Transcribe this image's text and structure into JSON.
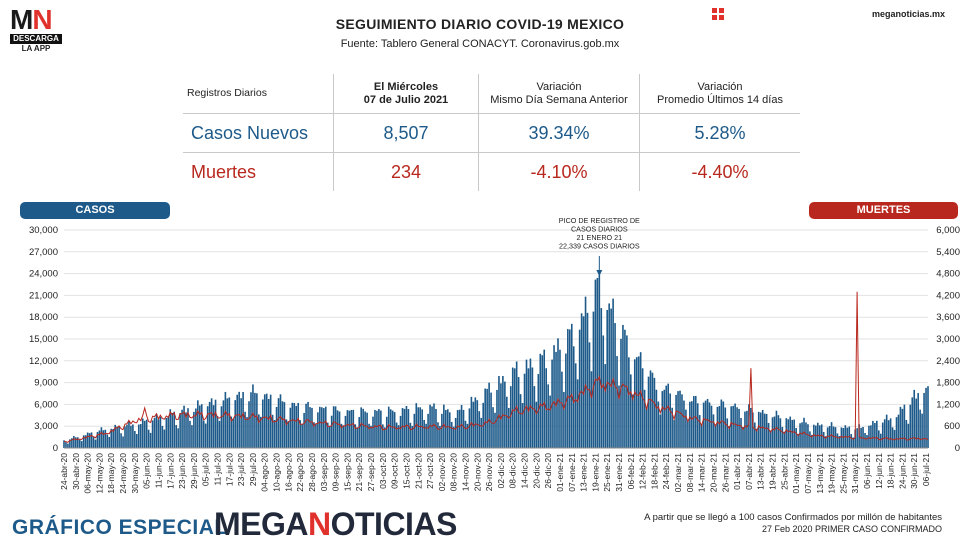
{
  "logo": {
    "mark_m": "M",
    "mark_n": "N",
    "bar": "DESCARGA",
    "sub": "LA APP"
  },
  "header": {
    "title": "SEGUIMIENTO DIARIO COVID-19 MEXICO",
    "subtitle": "Fuente: Tablero General CONACYT. Coronavirus.gob.mx",
    "site": "meganoticias.mx"
  },
  "table": {
    "col0": "Registros Diarios",
    "col1_l1": "El Miércoles",
    "col1_l2": "07 de Julio 2021",
    "col2_l1": "Variación",
    "col2_l2": "Mismo Día Semana Anterior",
    "col3_l1": "Variación",
    "col3_l2": "Promedio Últimos 14 días",
    "rows": [
      {
        "label": "Casos Nuevos",
        "v1": "8,507",
        "v2": "39.34%",
        "v3": "5.28%"
      },
      {
        "label": "Muertes",
        "v1": "234",
        "v2": "-4.10%",
        "v3": "-4.40%"
      }
    ]
  },
  "pills": {
    "left": "CASOS",
    "right": "MUERTES"
  },
  "footer": {
    "left": "GRÁFICO ESPECIAL",
    "brand_a": "MEGA",
    "brand_b": "N",
    "brand_c": "OTICIAS",
    "note1": "A partir que se llegó a 100 casos Confirmados por millón de habitantes",
    "note2": "27 Feb 2020 PRIMER CASO CONFIRMADO"
  },
  "colors": {
    "casos": "#1d5a8a",
    "muertes": "#b8281e",
    "accent": "#e0312c"
  },
  "chart_data": {
    "type": "bar",
    "left_axis": {
      "label": "CASOS",
      "ylim": [
        0,
        30000
      ],
      "ticks": [
        "0",
        "3,000",
        "6,000",
        "9,000",
        "12,000",
        "15,000",
        "18,000",
        "21,000",
        "24,000",
        "27,000",
        "30,000"
      ]
    },
    "right_axis": {
      "label": "MUERTES",
      "ylim": [
        0,
        6000
      ],
      "ticks": [
        "0",
        "600",
        "1,200",
        "1,800",
        "2,400",
        "3,000",
        "3,600",
        "4,200",
        "4,800",
        "5,400",
        "6,000"
      ]
    },
    "x_start": "2020-04-24",
    "x_end": "2021-07-07",
    "x_tick_labels": [
      "24-abr-20",
      "30-abr-20",
      "06-may-20",
      "12-may-20",
      "18-may-20",
      "24-may-20",
      "30-may-20",
      "05-jun-20",
      "11-jun-20",
      "17-jun-20",
      "23-jun-20",
      "29-jun-20",
      "05-jul-20",
      "11-jul-20",
      "17-jul-20",
      "23-jul-20",
      "29-jul-20",
      "04-ago-20",
      "10-ago-20",
      "16-ago-20",
      "22-ago-20",
      "28-ago-20",
      "03-sep-20",
      "09-sep-20",
      "15-sep-20",
      "21-sep-20",
      "27-sep-20",
      "03-oct-20",
      "09-oct-20",
      "15-oct-20",
      "21-oct-20",
      "27-oct-20",
      "02-nov-20",
      "08-nov-20",
      "14-nov-20",
      "20-nov-20",
      "26-nov-20",
      "02-dic-20",
      "08-dic-20",
      "14-dic-20",
      "20-dic-20",
      "26-dic-20",
      "01-ene-21",
      "07-ene-21",
      "13-ene-21",
      "19-ene-21",
      "25-ene-21",
      "31-ene-21",
      "06-feb-21",
      "12-feb-21",
      "18-feb-21",
      "24-feb-21",
      "02-mar-21",
      "08-mar-21",
      "14-mar-21",
      "20-mar-21",
      "26-mar-21",
      "01-abr-21",
      "07-abr-21",
      "13-abr-21",
      "19-abr-21",
      "25-abr-21",
      "01-may-21",
      "07-may-21",
      "13-may-21",
      "19-may-21",
      "25-may-21",
      "31-may-21",
      "06-jun-21",
      "12-jun-21",
      "18-jun-21",
      "24-jun-21",
      "30-jun-21",
      "06-jul-21"
    ],
    "casos_series": {
      "name": "CASOS",
      "keypoints_date": [
        "2020-04-24",
        "2020-05-15",
        "2020-06-01",
        "2020-06-20",
        "2020-07-10",
        "2020-07-29",
        "2020-08-20",
        "2020-09-15",
        "2020-10-05",
        "2020-10-27",
        "2020-11-10",
        "2020-11-25",
        "2020-12-10",
        "2020-12-25",
        "2021-01-08",
        "2021-01-21",
        "2021-02-05",
        "2021-02-20",
        "2021-03-10",
        "2021-04-01",
        "2021-04-20",
        "2021-05-10",
        "2021-06-01",
        "2021-06-20",
        "2021-07-07"
      ],
      "keypoints_value": [
        1000,
        2500,
        3300,
        4700,
        6100,
        7300,
        5600,
        4800,
        4800,
        5400,
        4700,
        7500,
        10200,
        11800,
        15200,
        21500,
        13500,
        8200,
        6300,
        5400,
        4300,
        3100,
        2600,
        4100,
        8507
      ]
    },
    "muertes_series": {
      "name": "MUERTES",
      "keypoints_date": [
        "2020-04-24",
        "2020-05-15",
        "2020-06-01",
        "2020-06-20",
        "2020-07-10",
        "2020-07-29",
        "2020-08-20",
        "2020-09-15",
        "2020-10-05",
        "2020-10-27",
        "2020-11-10",
        "2020-11-25",
        "2020-12-10",
        "2020-12-25",
        "2021-01-08",
        "2021-01-21",
        "2021-02-05",
        "2021-02-20",
        "2021-03-10",
        "2021-04-01",
        "2021-04-20",
        "2021-05-10",
        "2021-06-01",
        "2021-06-20",
        "2021-07-07"
      ],
      "keypoints_value": [
        150,
        350,
        700,
        800,
        800,
        750,
        650,
        550,
        500,
        520,
        500,
        600,
        900,
        1000,
        1200,
        1600,
        1400,
        1000,
        700,
        550,
        450,
        300,
        250,
        220,
        234
      ],
      "spikes": [
        {
          "date": "2020-06-04",
          "value": 1100
        },
        {
          "date": "2021-04-08",
          "value": 2200
        },
        {
          "date": "2021-06-01",
          "value": 4300
        }
      ]
    },
    "annotation": {
      "line1": "PICO DE REGISTRO DE",
      "line2": "CASOS DIARIOS",
      "line3": "21 ENERO 21",
      "line4": "22,339 CASOS DIARIOS",
      "date": "2021-01-21",
      "value": 22339
    }
  }
}
